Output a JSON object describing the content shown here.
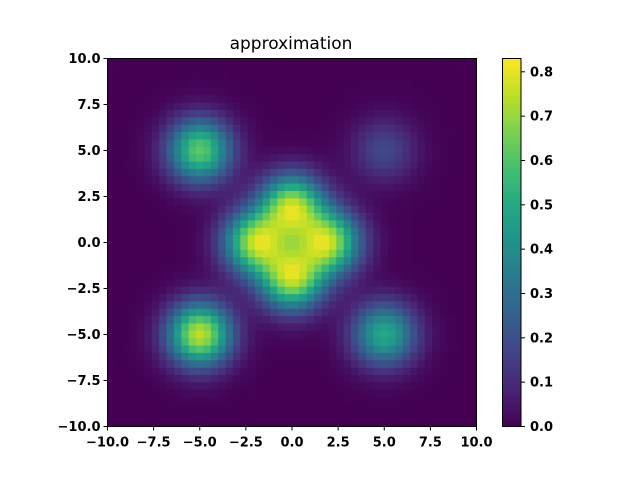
{
  "chart_data": {
    "type": "heatmap",
    "title": "approximation",
    "xlabel": "",
    "ylabel": "",
    "xlim": [
      -10,
      10
    ],
    "ylim": [
      -10,
      10
    ],
    "grid": false,
    "colormap": "viridis",
    "x_ticks": [
      "−10.0",
      "−7.5",
      "−5.0",
      "−2.5",
      "0.0",
      "2.5",
      "5.0",
      "7.5",
      "10.0"
    ],
    "x_tick_values": [
      -10,
      -7.5,
      -5,
      -2.5,
      0,
      2.5,
      5,
      7.5,
      10
    ],
    "y_ticks": [
      "−10.0",
      "−7.5",
      "−5.0",
      "−2.5",
      "0.0",
      "2.5",
      "5.0",
      "7.5",
      "10.0"
    ],
    "y_tick_values": [
      -10,
      -7.5,
      -5,
      -2.5,
      0,
      2.5,
      5,
      7.5,
      10
    ],
    "colorbar": {
      "range": [
        0,
        0.83
      ],
      "ticks": [
        "0.0",
        "0.1",
        "0.2",
        "0.3",
        "0.4",
        "0.5",
        "0.6",
        "0.7",
        "0.8"
      ],
      "tick_values": [
        0,
        0.1,
        0.2,
        0.3,
        0.4,
        0.5,
        0.6,
        0.7,
        0.8
      ]
    },
    "grid_resolution": 50,
    "blobs": [
      {
        "x": -5,
        "y": 5,
        "peak": 0.62
      },
      {
        "x": 5,
        "y": 5,
        "peak": 0.18
      },
      {
        "x": -5,
        "y": -5,
        "peak": 0.75
      },
      {
        "x": 5,
        "y": -5,
        "peak": 0.5
      },
      {
        "x": 0,
        "y": 2,
        "peak": 0.7
      },
      {
        "x": 0,
        "y": -2,
        "peak": 0.7
      },
      {
        "x": -2,
        "y": 0,
        "peak": 0.7
      },
      {
        "x": 2,
        "y": 0,
        "peak": 0.7
      }
    ],
    "blob_sigma": 1.2
  }
}
